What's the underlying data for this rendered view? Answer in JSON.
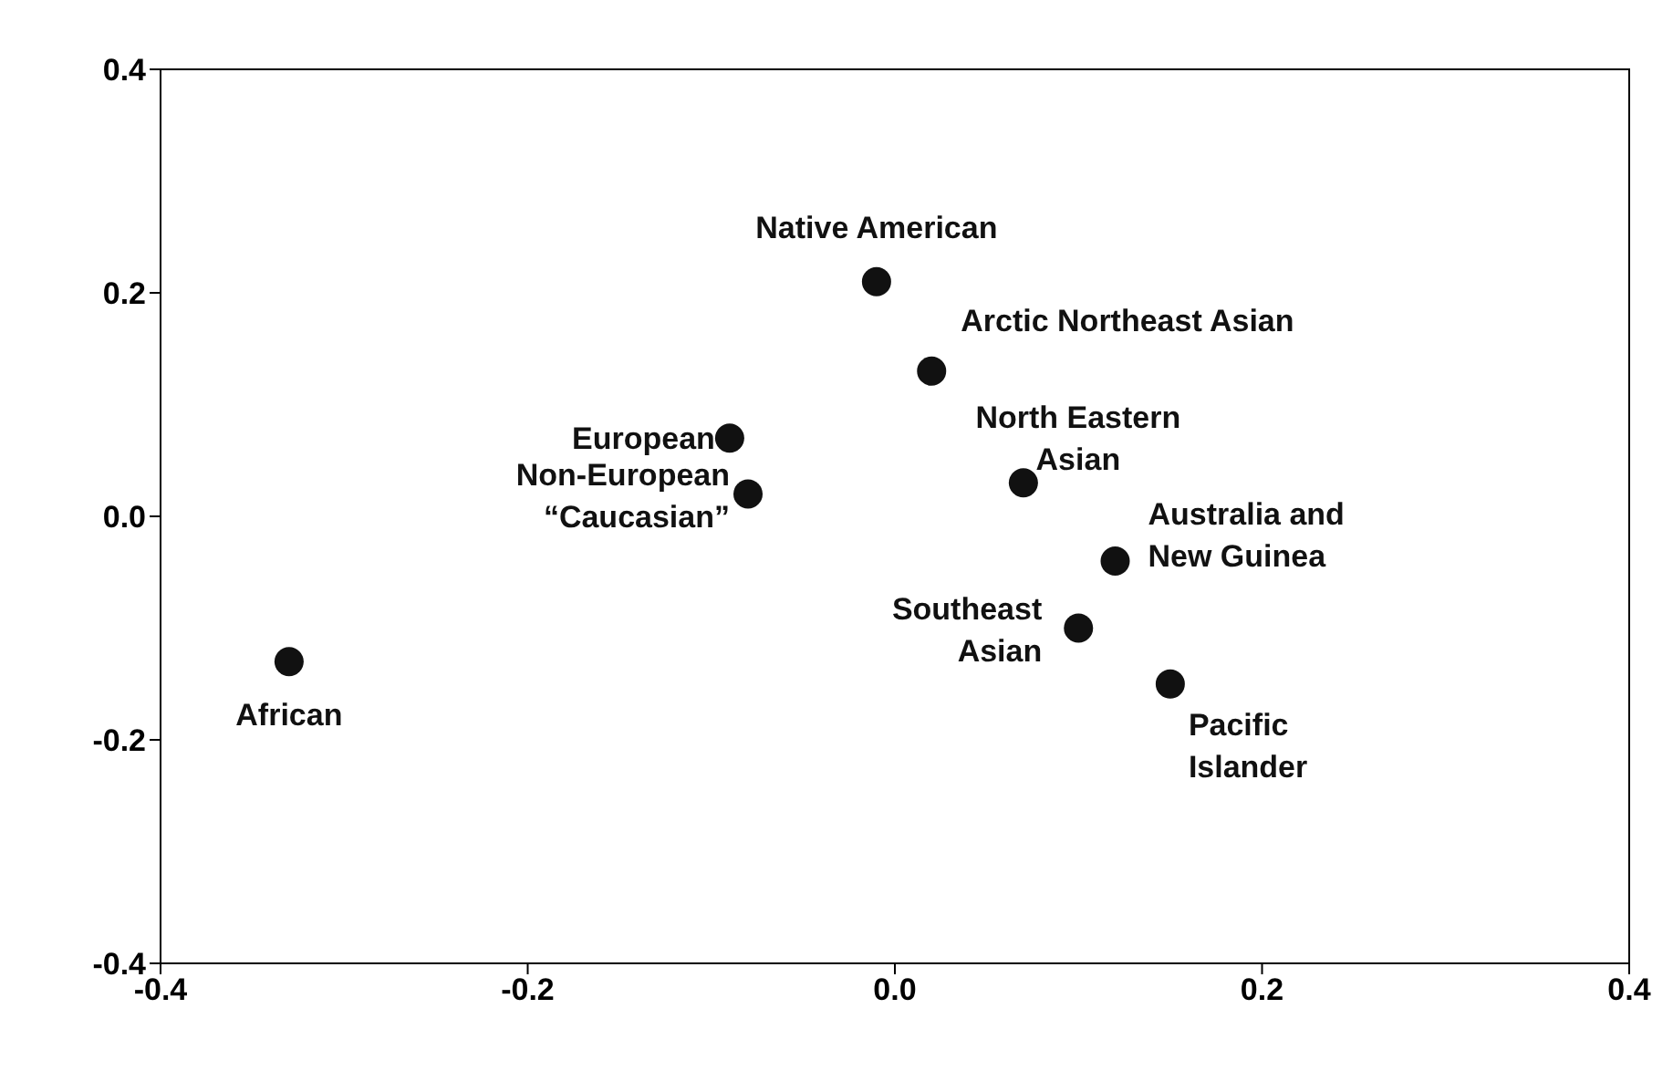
{
  "chart_data": {
    "type": "scatter",
    "x": [
      -0.33,
      -0.09,
      -0.08,
      -0.01,
      0.02,
      0.07,
      0.12,
      0.1,
      0.15
    ],
    "series": [
      {
        "color": "#111111",
        "values": [
          -0.13,
          0.07,
          0.02,
          0.21,
          0.13,
          0.03,
          -0.04,
          -0.1,
          -0.15
        ]
      }
    ],
    "xlim": [
      -0.4,
      0.4
    ],
    "xticks": [
      {
        "value": -0.4,
        "label": "-0.4"
      },
      {
        "value": -0.2,
        "label": "-0.2"
      },
      {
        "value": 0,
        "label": "0.0"
      },
      {
        "value": 0.2,
        "label": "0.2"
      },
      {
        "value": 0.4,
        "label": "0.4"
      }
    ],
    "ylim": [
      -0.4,
      0.4
    ],
    "yticks": [
      {
        "value": -0.4,
        "label": "-0.4"
      },
      {
        "value": -0.2,
        "label": "-0.2"
      },
      {
        "value": 0,
        "label": "0.0"
      },
      {
        "value": 0.2,
        "label": "0.2"
      },
      {
        "value": 0.4,
        "label": "0.4"
      }
    ],
    "marker": "circle",
    "grid": false,
    "legend": false,
    "annotations": [
      {
        "text": "African",
        "x": -0.33,
        "y": -0.13
      },
      {
        "text": "European",
        "x": -0.09,
        "y": 0.07
      },
      {
        "text": "Non-European\n“Caucasian”",
        "x": -0.08,
        "y": 0.02
      },
      {
        "text": "Native American",
        "x": -0.01,
        "y": 0.21
      },
      {
        "text": "Arctic Northeast Asian",
        "x": 0.02,
        "y": 0.13
      },
      {
        "text": "North Eastern\nAsian",
        "x": 0.07,
        "y": 0.03
      },
      {
        "text": "Australia and\nNew Guinea",
        "x": 0.12,
        "y": -0.04
      },
      {
        "text": "Southeast\nAsian",
        "x": 0.1,
        "y": -0.1
      },
      {
        "text": "Pacific\nIslander",
        "x": 0.15,
        "y": -0.15
      }
    ]
  }
}
